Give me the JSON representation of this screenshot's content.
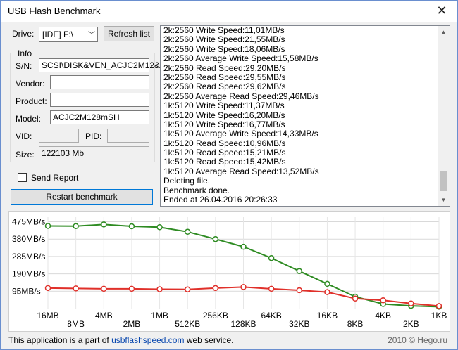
{
  "window": {
    "title": "USB Flash Benchmark",
    "close_glyph": "✕"
  },
  "drive": {
    "label": "Drive:",
    "value": "[IDE] F:\\",
    "refresh_label": "Refresh list"
  },
  "info": {
    "group_title": "Info",
    "sn_label": "S/N:",
    "sn_value": "SCSI\\DISK&VEN_ACJC2M12&",
    "vendor_label": "Vendor:",
    "vendor_value": "",
    "product_label": "Product:",
    "product_value": "",
    "model_label": "Model:",
    "model_value": "ACJC2M128mSH",
    "vid_label": "VID:",
    "vid_value": "",
    "pid_label": "PID:",
    "pid_value": "",
    "size_label": "Size:",
    "size_value": "122103 Mb"
  },
  "send_report": {
    "label": "Send Report",
    "checked": false
  },
  "restart_label": "Restart benchmark",
  "log": [
    "2k:2560 Write Speed:11,01MB/s",
    "2k:2560 Write Speed:21,55MB/s",
    "2k:2560 Write Speed:18,06MB/s",
    "2k:2560 Average Write Speed:15,58MB/s",
    "2k:2560 Read Speed:29,20MB/s",
    "2k:2560 Read Speed:29,55MB/s",
    "2k:2560 Read Speed:29,62MB/s",
    "2k:2560 Average Read Speed:29,46MB/s",
    "1k:5120 Write Speed:11,37MB/s",
    "1k:5120 Write Speed:16,20MB/s",
    "1k:5120 Write Speed:16,77MB/s",
    "1k:5120 Average Write Speed:14,33MB/s",
    "1k:5120 Read Speed:10,96MB/s",
    "1k:5120 Read Speed:15,21MB/s",
    "1k:5120 Read Speed:15,42MB/s",
    "1k:5120 Average Read Speed:13,52MB/s",
    "Deleting file.",
    "Benchmark done.",
    "Ended at 26.04.2016 20:26:33"
  ],
  "footer": {
    "prefix": "This application is a part of ",
    "link": "usbflashspeed.com",
    "suffix": " web service.",
    "right": "2010 © Hego.ru"
  },
  "chart_data": {
    "type": "line",
    "categories": [
      "16MB",
      "8MB",
      "4MB",
      "2MB",
      "1MB",
      "512KB",
      "256KB",
      "128KB",
      "64KB",
      "32KB",
      "16KB",
      "8KB",
      "4KB",
      "2KB",
      "1KB"
    ],
    "y_ticks": [
      "475MB/s",
      "380MB/s",
      "285MB/s",
      "190MB/s",
      "95MB/s"
    ],
    "y_tick_values": [
      475,
      380,
      285,
      190,
      95
    ],
    "ylim": [
      0,
      500
    ],
    "grid": true,
    "series": [
      {
        "color": "#2e8b22",
        "values": [
          452,
          451,
          460,
          450,
          445,
          420,
          380,
          338,
          276,
          205,
          135,
          65,
          25,
          15,
          10
        ]
      },
      {
        "color": "#e0302a",
        "values": [
          112,
          110,
          108,
          108,
          106,
          105,
          112,
          118,
          108,
          100,
          90,
          55,
          45,
          28,
          14
        ]
      }
    ]
  }
}
